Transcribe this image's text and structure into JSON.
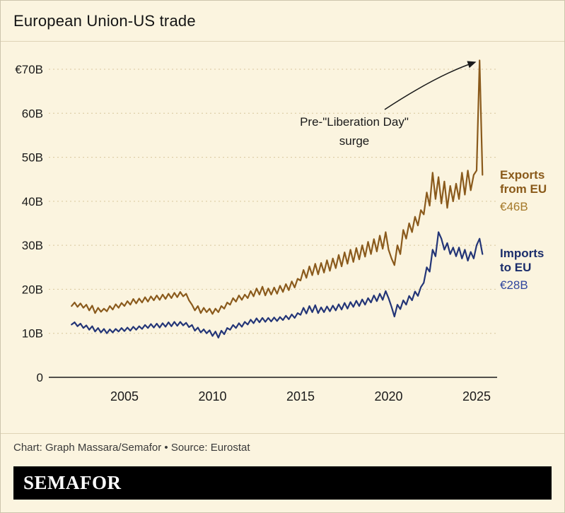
{
  "title": "European Union-US trade",
  "annotation": {
    "line1": "Pre-\"Liberation Day\"",
    "line2": "surge"
  },
  "series_labels": {
    "exports": {
      "line1": "Exports",
      "line2": "from EU",
      "value": "€46B",
      "name_color": "#8a5a1a",
      "value_color": "#a5792a"
    },
    "imports": {
      "line1": "Imports",
      "line2": "to EU",
      "value": "€28B",
      "name_color": "#1b2d6b",
      "value_color": "#32479e"
    }
  },
  "caption": "Chart: Graph Massara/Semafor • Source: Eurostat",
  "logo": "SEMAFOR",
  "chart_data": {
    "type": "line",
    "title": "European Union-US trade",
    "xlabel": "",
    "ylabel": "€ billions",
    "xlim": [
      2002,
      2025.33
    ],
    "ylim": [
      0,
      75
    ],
    "x_start": 2002.0,
    "x_step": 0.16667,
    "x_ticks": [
      2005,
      2010,
      2015,
      2020,
      2025
    ],
    "y_ticks": [
      {
        "value": 70,
        "label": "€70B"
      },
      {
        "value": 60,
        "label": "60B"
      },
      {
        "value": 50,
        "label": "50B"
      },
      {
        "value": 40,
        "label": "40B"
      },
      {
        "value": 30,
        "label": "30B"
      },
      {
        "value": 20,
        "label": "20B"
      },
      {
        "value": 10,
        "label": "10B"
      },
      {
        "value": 0,
        "label": "0"
      }
    ],
    "grid": "dashed-horizontal",
    "grid_color": "#d8c69c",
    "series": [
      {
        "name": "Exports from EU",
        "color": "#8a5a1c",
        "end_value_label": "€46B",
        "values": [
          16.2,
          17.0,
          16.0,
          16.8,
          15.8,
          16.5,
          15.2,
          16.3,
          14.6,
          15.8,
          14.9,
          15.6,
          15.0,
          16.2,
          15.4,
          16.6,
          15.8,
          16.9,
          16.2,
          17.3,
          16.5,
          17.8,
          16.8,
          17.9,
          17.0,
          18.2,
          17.2,
          18.4,
          17.5,
          18.6,
          17.6,
          18.8,
          17.8,
          19.0,
          18.0,
          19.2,
          18.2,
          19.4,
          18.4,
          19.0,
          17.5,
          16.5,
          15.2,
          16.2,
          14.6,
          15.8,
          14.8,
          15.6,
          14.4,
          15.6,
          14.8,
          16.2,
          15.6,
          17.0,
          16.5,
          18.0,
          17.2,
          18.6,
          17.6,
          18.8,
          18.0,
          19.6,
          18.4,
          20.2,
          18.8,
          20.6,
          18.6,
          20.2,
          18.8,
          20.4,
          19.0,
          20.8,
          19.4,
          21.2,
          19.8,
          21.8,
          20.4,
          22.4,
          22.0,
          24.4,
          22.6,
          25.2,
          23.2,
          25.8,
          23.4,
          26.0,
          23.8,
          26.6,
          24.2,
          27.0,
          24.8,
          27.8,
          25.2,
          28.4,
          25.8,
          29.0,
          26.2,
          29.4,
          26.8,
          30.0,
          27.4,
          30.8,
          28.0,
          31.4,
          28.6,
          32.2,
          29.2,
          33.0,
          29.0,
          27.0,
          25.5,
          30.0,
          28.0,
          33.5,
          31.5,
          35.0,
          33.0,
          36.5,
          34.5,
          38.0,
          37.0,
          42.0,
          39.0,
          46.5,
          40.5,
          45.5,
          39.5,
          44.5,
          38.5,
          43.5,
          40.0,
          44.0,
          40.5,
          46.5,
          41.5,
          47.0,
          42.5,
          46.0,
          47.0,
          72.0,
          46.0
        ]
      },
      {
        "name": "Imports to EU",
        "color": "#233577",
        "end_value_label": "€28B",
        "values": [
          12.0,
          12.5,
          11.6,
          12.2,
          11.2,
          11.8,
          10.8,
          11.6,
          10.4,
          11.2,
          10.2,
          11.0,
          10.0,
          10.9,
          10.2,
          11.0,
          10.4,
          11.2,
          10.5,
          11.3,
          10.6,
          11.5,
          10.8,
          11.6,
          11.0,
          11.9,
          11.2,
          12.1,
          11.3,
          12.2,
          11.3,
          12.3,
          11.5,
          12.5,
          11.6,
          12.6,
          11.7,
          12.6,
          11.8,
          12.4,
          11.4,
          11.9,
          10.6,
          11.3,
          10.2,
          10.9,
          10.0,
          10.7,
          9.4,
          10.4,
          9.0,
          10.6,
          9.8,
          11.2,
          10.8,
          11.9,
          11.2,
          12.3,
          11.5,
          12.6,
          12.0,
          13.1,
          12.3,
          13.4,
          12.5,
          13.5,
          12.6,
          13.5,
          12.7,
          13.6,
          12.8,
          13.7,
          13.0,
          14.0,
          13.2,
          14.3,
          13.5,
          14.6,
          14.2,
          15.8,
          14.5,
          16.2,
          14.8,
          16.4,
          14.6,
          15.9,
          14.8,
          16.1,
          15.0,
          16.3,
          15.2,
          16.6,
          15.4,
          16.9,
          15.6,
          17.1,
          16.0,
          17.4,
          16.2,
          17.7,
          16.5,
          18.0,
          17.0,
          18.6,
          17.3,
          19.0,
          17.6,
          19.6,
          18.0,
          16.0,
          13.8,
          16.5,
          15.5,
          17.5,
          16.5,
          18.5,
          17.5,
          19.5,
          18.5,
          20.5,
          21.5,
          25.0,
          24.0,
          29.0,
          27.5,
          33.0,
          31.5,
          29.0,
          30.5,
          28.0,
          29.5,
          27.5,
          29.5,
          27.0,
          29.0,
          26.5,
          28.5,
          27.0,
          30.0,
          31.5,
          28.0
        ]
      }
    ]
  }
}
